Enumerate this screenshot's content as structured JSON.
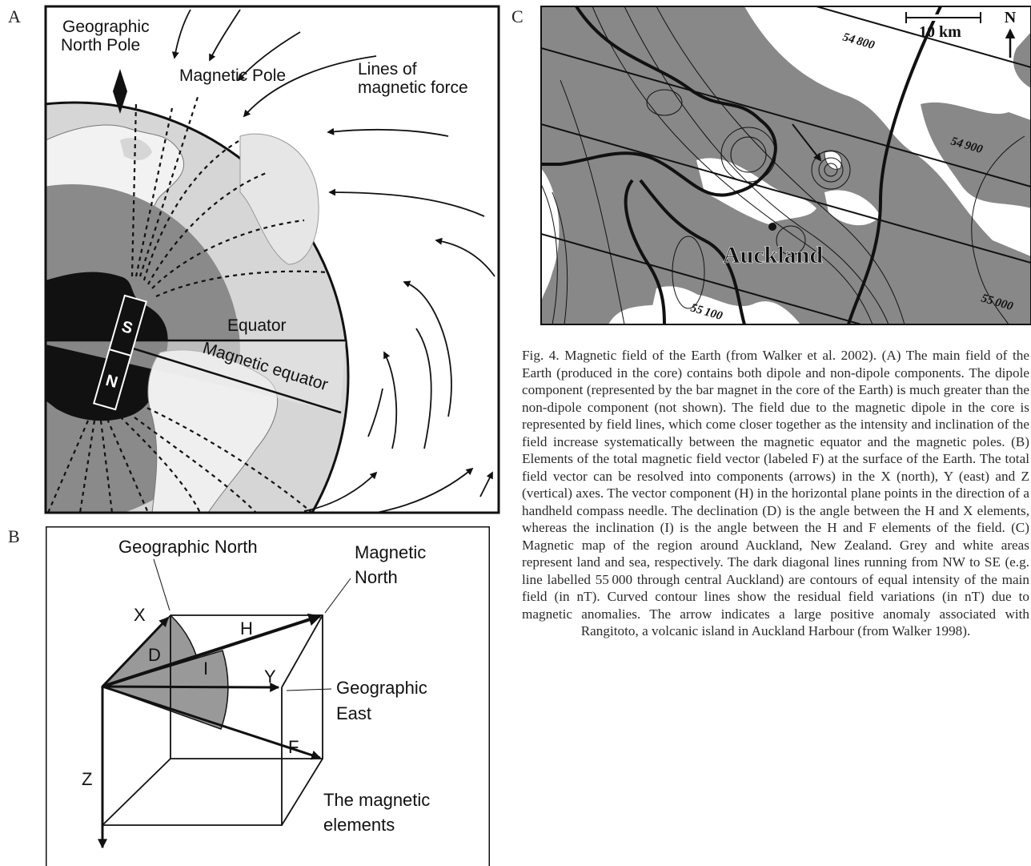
{
  "panel_a": {
    "label": "A",
    "pole_label": [
      "Geographic",
      "North Pole"
    ],
    "magnetic_pole": "Magnetic Pole",
    "force_label": [
      "Lines of",
      "magnetic force"
    ],
    "equator": "Equator",
    "magnetic_equator": "Magnetic equator",
    "magnet_south": "S",
    "magnet_north": "N"
  },
  "panel_b": {
    "label": "B",
    "geographic_north": "Geographic North",
    "magnetic_north": [
      "Magnetic",
      "North"
    ],
    "x": "X",
    "h": "H",
    "d": "D",
    "i": "I",
    "y": "Y",
    "geographic_east": [
      "Geographic",
      "East"
    ],
    "f": "F",
    "z": "Z",
    "elements_label": [
      "The magnetic",
      "elements"
    ]
  },
  "panel_c": {
    "label": "C",
    "scale": "10 km",
    "north": "N",
    "contours": [
      "54 800",
      "54 900",
      "55 000",
      "55 100"
    ],
    "place": "Auckland"
  },
  "caption": "Fig. 4. Magnetic field of the Earth (from Walker et al. 2002). (A) The main field of the Earth (produced in the core) contains both dipole and non-dipole components. The dipole component (represented by the bar magnet in the core of the Earth) is much greater than the non-dipole component (not shown). The field due to the magnetic dipole in the core is represented by field lines, which come closer together as the intensity and inclination of the field increase systematically between the magnetic equator and the magnetic poles. (B) Elements of the total magnetic field vector (labeled F) at the surface of the Earth. The total field vector can be resolved into components (arrows) in the X (north), Y (east) and Z (vertical) axes. The vector component (H) in the horizontal plane points in the direction of a handheld compass needle. The declination (D) is the angle between the H and X elements, whereas the inclination (I) is the angle between the H and F elements of the field. (C) Magnetic map of the region around Auckland, New Zealand. Grey and white areas represent land and sea, respectively. The dark diagonal lines running from NW to SE (e.g. line labelled 55 000 through central Auckland) are contours of equal intensity of the main field (in nT). Curved contour lines show the residual field variations (in nT) due to magnetic anomalies. The arrow indicates a large positive anomaly associated with Rangitoto, a volcanic island in Auckland Harbour (from Walker 1998)."
}
